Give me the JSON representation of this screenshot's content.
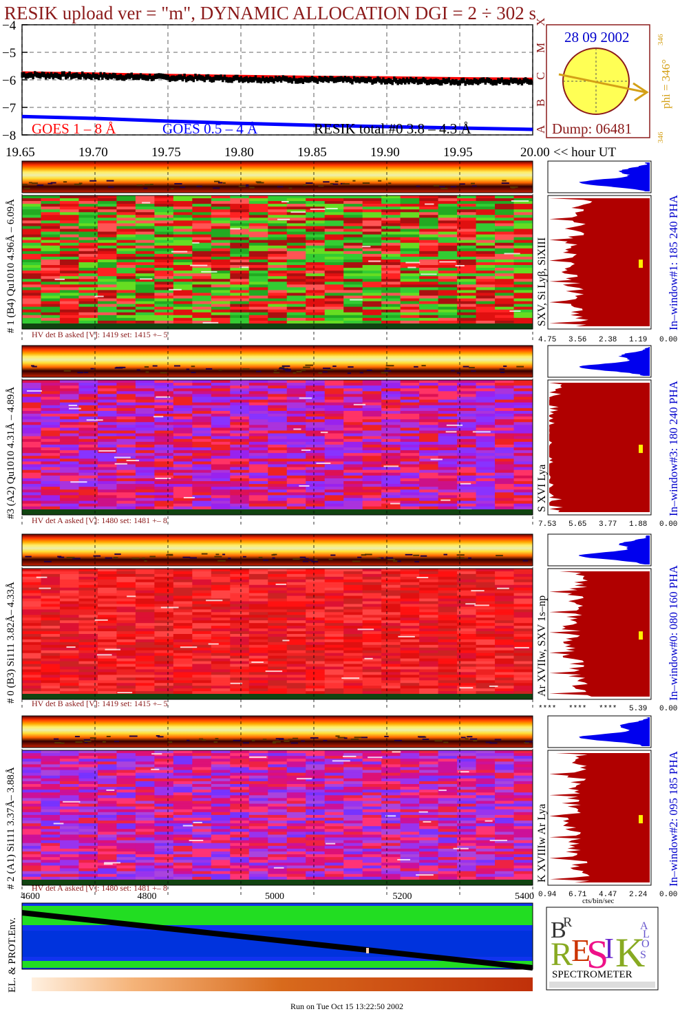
{
  "title": "RESIK upload ver = \"m\", DYNAMIC ALLOCATION  DGI =   2 ÷ 302 s",
  "colors": {
    "title": "#8b1a1a",
    "goes_long": "#ff0000",
    "goes_short": "#0000ff",
    "resik_total": "#000000",
    "sun": "#ffff55",
    "phi": "#d4a017",
    "spectrum_fill": "#b00000",
    "pha_fill": "#0000ee",
    "axis_blue": "#0000cc"
  },
  "lightcurve": {
    "legend": [
      "GOES 1 – 8 Å",
      "GOES 0.5 – 4 Å",
      "RESIK total #0  3.8 – 4.3 Å"
    ],
    "flare_classes": [
      "A",
      "B",
      "C",
      "M",
      "X"
    ]
  },
  "time_axis_label": "<< hour UT",
  "sun": {
    "date": "28 09 2002",
    "dump": "Dump: 06481",
    "phi": "phi = 346°",
    "phi_small": "346",
    "phi_bottom": "346"
  },
  "channels": [
    {
      "label": "# 1 (B4) Qu1010 4.96Å – 6.09Å",
      "lines": "SXV, Si Lyβ, SiXIII",
      "window": "In–window#1:  185 240 PHA",
      "hv_a": "HV det B asked [V]:  1419 set:  1415  +–    5",
      "spec_ticks": [
        "4.75",
        "3.56",
        "2.38",
        "1.19",
        "0.00"
      ]
    },
    {
      "label": "#3 (A2) Qu1010  4.31Å – 4.89Å",
      "lines": "S XVI Lya",
      "window": "In–window#3:  180 240 PHA",
      "hv_a": "HV det A asked [V]:  1480 set:  1481  +–    8",
      "spec_ticks": [
        "7.53",
        "5.65",
        "3.77",
        "1.88",
        "0.00"
      ]
    },
    {
      "label": "# 0 (B3) Si111  3.82Å– 4.33Å",
      "lines": "Ar XVIIw, SXV 1s–np",
      "window": "In–window#0:  080 160 PHA",
      "hv_a": "HV det B asked [V]:  1419 set:  1415  +–    5",
      "spec_ticks": [
        "****",
        "****",
        "****",
        "5.39",
        "0.00"
      ]
    },
    {
      "label": "# 2 (A1) Si111  3.37Å–  3.88Å",
      "lines": "K XVIIIw  Ar Lya",
      "window": "In–window#2:  095 185 PHA",
      "hv_a": "HV det A asked [V]:  1480 set:  1481  +–    8",
      "spec_ticks": [
        "0.94",
        "6.71",
        "4.47",
        "2.24",
        "0.00"
      ]
    }
  ],
  "spectrum_units": "cts/bin/sec",
  "bottom_axis_ticks": [
    "4600",
    "4800",
    "5000",
    "5200",
    "5400"
  ],
  "env_label": "EL. & PROT.Env.",
  "logo": {
    "letters": [
      "B",
      "R",
      "E",
      "S",
      "I",
      "K",
      "S",
      "O",
      "L",
      "A",
      "R"
    ],
    "caption": "SPECTROMETER"
  },
  "footer": "Run on Tue Oct 15 13:22:50 2002",
  "chart_data": {
    "type": "line",
    "title": "RESIK upload ver = \"m\", DYNAMIC ALLOCATION  DGI =   2 ÷ 302 s",
    "xlabel": "<< hour UT",
    "ylabel": "",
    "x_ticks": [
      "19.65",
      "19.70",
      "19.75",
      "19.80",
      "19.85",
      "19.90",
      "19.95",
      "20.00"
    ],
    "y_ticks": [
      "−4",
      "−5",
      "−6",
      "−7",
      "−8"
    ],
    "xlim": [
      19.65,
      20.0
    ],
    "ylim": [
      -8,
      -4
    ],
    "grid": true,
    "x": [
      19.65,
      19.7,
      19.75,
      19.8,
      19.85,
      19.9,
      19.95,
      20.0
    ],
    "series": [
      {
        "name": "GOES 1 – 8 Å",
        "color": "#ff0000",
        "values": [
          -5.74,
          -5.78,
          -5.83,
          -5.87,
          -5.9,
          -5.92,
          -5.95,
          -5.97
        ]
      },
      {
        "name": "GOES 0.5 – 4 Å",
        "color": "#0000ff",
        "values": [
          -7.33,
          -7.4,
          -7.5,
          -7.58,
          -7.65,
          -7.7,
          -7.75,
          -7.8
        ]
      },
      {
        "name": "RESIK total #0  3.8 – 4.3 Å",
        "color": "#000000",
        "values": [
          -5.82,
          -5.86,
          -5.92,
          -5.96,
          -6.0,
          -6.03,
          -6.06,
          -6.06
        ]
      }
    ]
  }
}
